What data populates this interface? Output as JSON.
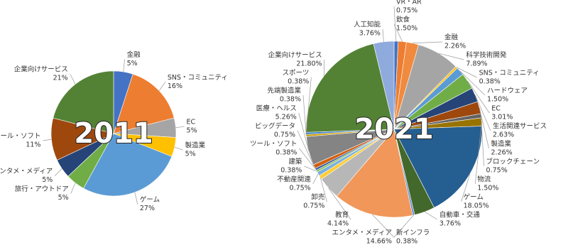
{
  "chart_data": [
    {
      "type": "pie",
      "title": "2011",
      "categories": [
        "金融",
        "SNS・コミュニティ",
        "EC",
        "製造業",
        "ゲーム",
        "旅行・アウトドア",
        "エンタメ・メディア",
        "ツール・ソフト",
        "企業向けサービス"
      ],
      "values": [
        5,
        16,
        5,
        5,
        27,
        5,
        5,
        11,
        21
      ],
      "value_labels": [
        "5%",
        "16%",
        "5%",
        "5%",
        "27%",
        "5%",
        "5%",
        "11%",
        "21%"
      ],
      "colors": [
        "#4472c4",
        "#ed7d31",
        "#a5a5a5",
        "#ffc000",
        "#5b9bd5",
        "#70ad47",
        "#264478",
        "#9e480e",
        "#548235"
      ]
    },
    {
      "type": "pie",
      "title": "2021",
      "categories": [
        "VR・AR",
        "飲食",
        "金融",
        "科学技術開発",
        "SNS・コミュニティ",
        "ハードウェア",
        "EC",
        "生活関連サービス",
        "製造業",
        "ブロックチェーン",
        "物流",
        "ゲーム",
        "自動車・交通",
        "新インフラ",
        "エンタメ・メディア",
        "教育",
        "卸売",
        "不動産関連",
        "建築",
        "ツール・ソフト",
        "ビッグデータ",
        "医療・ヘルス",
        "先端製造業",
        "スポーツ",
        "企業向けサービス",
        "人工知能"
      ],
      "values": [
        0.75,
        1.5,
        2.26,
        7.89,
        0.38,
        1.5,
        3.01,
        2.63,
        2.26,
        0.75,
        1.5,
        18.05,
        3.76,
        0.38,
        14.66,
        4.14,
        0.75,
        0.75,
        0.38,
        0.38,
        0.75,
        5.26,
        0.38,
        0.38,
        21.8,
        3.76
      ],
      "value_labels": [
        "0.75%",
        "1.50%",
        "2.26%",
        "7.89%",
        "0.38%",
        "1.50%",
        "3.01%",
        "2.63%",
        "2.26%",
        "0.75%",
        "1.50%",
        "18.05%",
        "3.76%",
        "0.38%",
        "14.66%",
        "4.14%",
        "0.75%",
        "0.75%",
        "0.38%",
        "0.38%",
        "0.75%",
        "5.26%",
        "0.38%",
        "0.38%",
        "21.80%",
        "3.76%"
      ],
      "colors": [
        "#4472c4",
        "#ed7d31",
        "#f08a3e",
        "#a5a5a5",
        "#ffc000",
        "#5b9bd5",
        "#70ad47",
        "#264478",
        "#9e480e",
        "#636363",
        "#997300",
        "#255e91",
        "#43682b",
        "#698ed0",
        "#f1975a",
        "#b7b7b7",
        "#ffcd33",
        "#7cafdd",
        "#8cc168",
        "#335aa1",
        "#d26012",
        "#848484",
        "#cc9a00",
        "#3c7dc4",
        "#548235",
        "#8faadc"
      ]
    }
  ]
}
